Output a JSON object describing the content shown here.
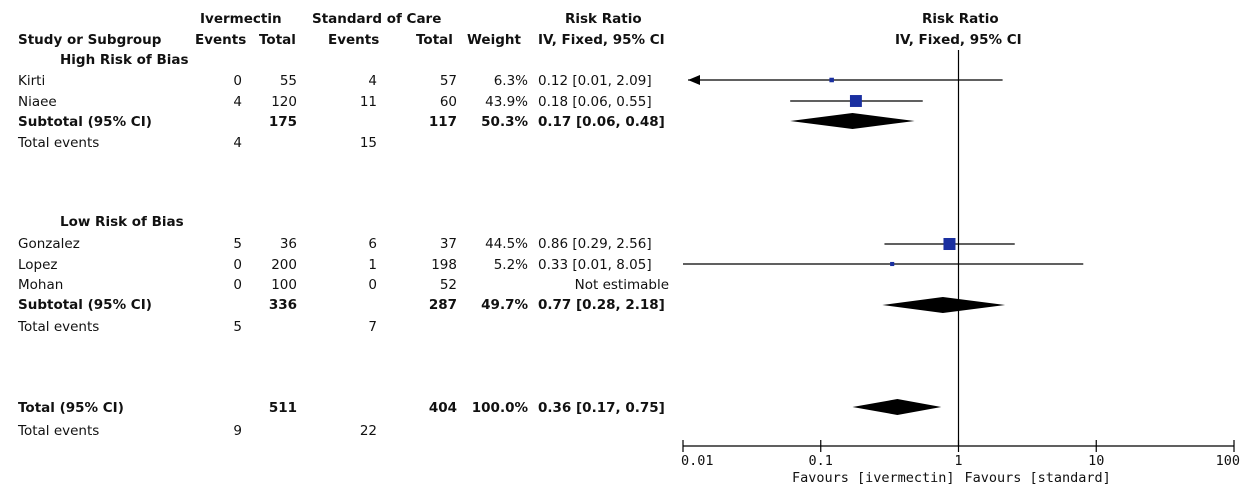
{
  "header": {
    "group1": "Ivermectin",
    "group2": "Standard of Care",
    "rr_title": "Risk Ratio",
    "rr_method": "IV, Fixed, 95% CI",
    "plot_title": "Risk Ratio",
    "plot_method": "IV, Fixed, 95% CI",
    "col_study": "Study or Subgroup",
    "col_events1": "Events",
    "col_total1": "Total",
    "col_events2": "Events",
    "col_total2": "Total",
    "col_weight": "Weight"
  },
  "subgroups": [
    {
      "title": "High Risk of Bias",
      "studies": [
        {
          "name": "Kirti",
          "e1": "0",
          "n1": "55",
          "e2": "4",
          "n2": "57",
          "weight": "6.3%",
          "ci": "0.12 [0.01, 2.09]"
        },
        {
          "name": "Niaee",
          "e1": "4",
          "n1": "120",
          "e2": "11",
          "n2": "60",
          "weight": "43.9%",
          "ci": "0.18 [0.06, 0.55]"
        }
      ],
      "subtotal": {
        "label": "Subtotal (95% CI)",
        "n1": "175",
        "n2": "117",
        "weight": "50.3%",
        "ci": "0.17 [0.06, 0.48]"
      },
      "events": {
        "label": "Total events",
        "e1": "4",
        "e2": "15"
      }
    },
    {
      "title": "Low Risk of Bias",
      "studies": [
        {
          "name": "Gonzalez",
          "e1": "5",
          "n1": "36",
          "e2": "6",
          "n2": "37",
          "weight": "44.5%",
          "ci": "0.86 [0.29, 2.56]"
        },
        {
          "name": "Lopez",
          "e1": "0",
          "n1": "200",
          "e2": "1",
          "n2": "198",
          "weight": "5.2%",
          "ci": "0.33 [0.01, 8.05]"
        },
        {
          "name": "Mohan",
          "e1": "0",
          "n1": "100",
          "e2": "0",
          "n2": "52",
          "weight": "",
          "ci": "Not estimable"
        }
      ],
      "subtotal": {
        "label": "Subtotal (95% CI)",
        "n1": "336",
        "n2": "287",
        "weight": "49.7%",
        "ci": "0.77 [0.28, 2.18]"
      },
      "events": {
        "label": "Total events",
        "e1": "5",
        "e2": "7"
      }
    }
  ],
  "overall": {
    "total": {
      "label": "Total (95% CI)",
      "n1": "511",
      "n2": "404",
      "weight": "100.0%",
      "ci": "0.36 [0.17, 0.75]"
    },
    "events": {
      "label": "Total events",
      "e1": "9",
      "e2": "22"
    }
  },
  "chart_data": {
    "type": "scatter",
    "subtype": "forest-plot",
    "xscale": "log",
    "xlim": [
      0.01,
      100
    ],
    "xticks": [
      "0.01",
      "0.1",
      "1",
      "10",
      "100"
    ],
    "null_value": 1,
    "favours_left": "Favours [ivermectin]",
    "favours_right": "Favours [standard]",
    "colors": {
      "study_marker": "#1a2fa0",
      "diamond": "#000000",
      "line": "#000000"
    },
    "studies": [
      {
        "name": "Kirti",
        "rr": 0.12,
        "lo": 0.01,
        "hi": 2.09,
        "weight": 6.3,
        "row": 1,
        "arrow_left": true
      },
      {
        "name": "Niaee",
        "rr": 0.18,
        "lo": 0.06,
        "hi": 0.55,
        "weight": 43.9,
        "row": 2
      },
      {
        "name": "Gonzalez",
        "rr": 0.86,
        "lo": 0.29,
        "hi": 2.56,
        "weight": 44.5,
        "row": 6
      },
      {
        "name": "Lopez",
        "rr": 0.33,
        "lo": 0.01,
        "hi": 8.05,
        "weight": 5.2,
        "row": 7
      }
    ],
    "diamonds": [
      {
        "name": "Subtotal High Risk of Bias",
        "rr": 0.17,
        "lo": 0.06,
        "hi": 0.48,
        "row": 3
      },
      {
        "name": "Subtotal Low Risk of Bias",
        "rr": 0.77,
        "lo": 0.28,
        "hi": 2.18,
        "row": 9
      },
      {
        "name": "Total",
        "rr": 0.36,
        "lo": 0.17,
        "hi": 0.75,
        "row": 12
      }
    ]
  }
}
